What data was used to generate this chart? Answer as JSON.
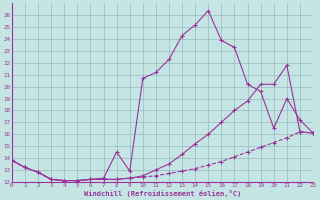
{
  "xlabel": "Windchill (Refroidissement éolien,°C)",
  "bg_color": "#c5e5e5",
  "line_color": "#993399",
  "grid_color": "#99bbbb",
  "xlim": [
    0,
    23
  ],
  "ylim": [
    12,
    27
  ],
  "yticks": [
    12,
    13,
    14,
    15,
    16,
    17,
    18,
    19,
    20,
    21,
    22,
    23,
    24,
    25,
    26
  ],
  "xticks": [
    0,
    1,
    2,
    3,
    4,
    5,
    6,
    7,
    8,
    9,
    10,
    11,
    12,
    13,
    14,
    15,
    16,
    17,
    18,
    19,
    20,
    21,
    22,
    23
  ],
  "line1_x": [
    0,
    1,
    2,
    3,
    4,
    5,
    6,
    7,
    8,
    9,
    10,
    11,
    12,
    13,
    14,
    15,
    16,
    17,
    18,
    19,
    20,
    21,
    22,
    23
  ],
  "line1_y": [
    13.8,
    13.2,
    12.8,
    12.2,
    12.1,
    12.1,
    12.2,
    12.3,
    14.5,
    12.9,
    20.7,
    21.2,
    22.3,
    24.3,
    25.2,
    26.4,
    23.9,
    23.3,
    20.2,
    19.6,
    16.5,
    19.0,
    17.2,
    16.1
  ],
  "line2_x": [
    0,
    1,
    2,
    3,
    4,
    5,
    6,
    7,
    8,
    9,
    10,
    11,
    12,
    13,
    14,
    15,
    16,
    17,
    18,
    19,
    20,
    21,
    22,
    23
  ],
  "line2_y": [
    13.8,
    13.2,
    12.8,
    12.2,
    12.1,
    12.1,
    12.2,
    12.2,
    12.2,
    12.3,
    12.5,
    13.0,
    13.5,
    14.3,
    15.2,
    16.0,
    17.0,
    18.0,
    18.8,
    20.2,
    20.2,
    21.8,
    16.2,
    16.1
  ],
  "line3_x": [
    0,
    1,
    2,
    3,
    4,
    5,
    6,
    7,
    8,
    9,
    10,
    11,
    12,
    13,
    14,
    15,
    16,
    17,
    18,
    19,
    20,
    21,
    22,
    23
  ],
  "line3_y": [
    13.8,
    13.2,
    12.8,
    12.2,
    12.1,
    12.1,
    12.2,
    12.2,
    12.2,
    12.3,
    12.4,
    12.5,
    12.7,
    12.9,
    13.1,
    13.4,
    13.7,
    14.1,
    14.5,
    14.9,
    15.3,
    15.7,
    16.2,
    16.1
  ]
}
